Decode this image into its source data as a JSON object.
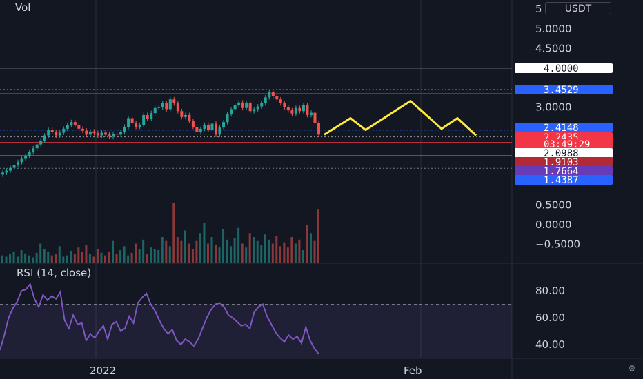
{
  "header": {
    "volume_label": "Vol",
    "currency_label": "USDT"
  },
  "price_axis": {
    "ticks": [
      "5.0000",
      "4.5000",
      "3.0000",
      "0.5000",
      "0.0000",
      "−0.5000"
    ],
    "partial_top_tick": "5"
  },
  "price_badges": [
    {
      "label": "4.0000",
      "bg": "#ffffff",
      "fg": "#131722"
    },
    {
      "label": "3.4529",
      "bg": "#2962ff",
      "fg": "#ffffff"
    },
    {
      "label": "2.4148",
      "bg": "#2962ff",
      "fg": "#ffffff"
    },
    {
      "label": "2.2435",
      "bg": "#f23645",
      "fg": "#ffffff"
    },
    {
      "label": "03:49:29",
      "bg": "#f23645",
      "fg": "#ffffff"
    },
    {
      "label": "2.0988",
      "bg": "#ffffff",
      "fg": "#131722"
    },
    {
      "label": "1.9103",
      "bg": "#b22833",
      "fg": "#ffffff"
    },
    {
      "label": "1.7664",
      "bg": "#673ab7",
      "fg": "#ffffff"
    },
    {
      "label": "1.4387",
      "bg": "#2962ff",
      "fg": "#ffffff"
    }
  ],
  "rsi": {
    "label": "RSI (14, close)",
    "ticks": [
      "80.00",
      "60.00",
      "40.00"
    ],
    "upper_band": 70,
    "mid_band": 50,
    "lower_band": 30,
    "line_color": "#7e57c2",
    "values": [
      36,
      47,
      60,
      67,
      72,
      80,
      81,
      85,
      74,
      68,
      77,
      73,
      76,
      74,
      79,
      58,
      52,
      62,
      55,
      56,
      43,
      48,
      45,
      50,
      54,
      44,
      55,
      57,
      50,
      52,
      61,
      56,
      71,
      75,
      78,
      70,
      65,
      58,
      52,
      48,
      51,
      43,
      40,
      44,
      42,
      39,
      44,
      52,
      60,
      66,
      70,
      71,
      68,
      62,
      60,
      57,
      54,
      55,
      52,
      64,
      68,
      70,
      61,
      55,
      49,
      45,
      42,
      47,
      44,
      46,
      41,
      53,
      43,
      37,
      33
    ]
  },
  "time_axis": {
    "labels": [
      "2022",
      "Feb"
    ]
  },
  "colors": {
    "background": "#131722",
    "up": "#26a69a",
    "down": "#ef5350",
    "projection": "#ffeb3b",
    "grid": "#2a2e39"
  },
  "chart_data": {
    "type": "candlestick",
    "title": "",
    "ylabel": "",
    "xlabel": "",
    "ylim": [
      -0.6,
      5.2
    ],
    "price_series_close": [
      1.33,
      1.38,
      1.45,
      1.52,
      1.6,
      1.68,
      1.76,
      1.85,
      1.95,
      2.05,
      2.15,
      2.28,
      2.42,
      2.36,
      2.28,
      2.35,
      2.45,
      2.55,
      2.62,
      2.55,
      2.45,
      2.4,
      2.3,
      2.38,
      2.34,
      2.28,
      2.35,
      2.3,
      2.25,
      2.32,
      2.3,
      2.36,
      2.5,
      2.72,
      2.6,
      2.5,
      2.55,
      2.8,
      2.7,
      2.85,
      2.98,
      3.0,
      3.1,
      2.95,
      3.2,
      3.1,
      2.9,
      2.75,
      2.8,
      2.65,
      2.5,
      2.36,
      2.45,
      2.55,
      2.42,
      2.58,
      2.3,
      2.48,
      2.62,
      2.82,
      2.95,
      3.05,
      3.12,
      2.98,
      3.1,
      2.9,
      2.95,
      3.02,
      3.1,
      3.25,
      3.38,
      3.28,
      3.2,
      3.1,
      3.0,
      2.92,
      2.84,
      2.98,
      2.9,
      3.05,
      2.8,
      2.86,
      2.6,
      2.3
    ],
    "projection_path": [
      2.3,
      2.72,
      2.42,
      3.16,
      2.45,
      2.72,
      2.28
    ],
    "horizontal_levels": [
      4.0,
      3.4529,
      3.35,
      2.4148,
      2.2435,
      2.0988,
      1.9103,
      1.7664,
      1.4387
    ],
    "volume_relative": [
      0.12,
      0.1,
      0.14,
      0.18,
      0.1,
      0.2,
      0.15,
      0.12,
      0.09,
      0.16,
      0.3,
      0.22,
      0.18,
      0.12,
      0.14,
      0.26,
      0.1,
      0.12,
      0.19,
      0.14,
      0.24,
      0.18,
      0.28,
      0.14,
      0.1,
      0.22,
      0.16,
      0.12,
      0.18,
      0.34,
      0.14,
      0.2,
      0.26,
      0.12,
      0.16,
      0.3,
      0.22,
      0.36,
      0.14,
      0.24,
      0.22,
      0.2,
      0.4,
      0.34,
      0.26,
      0.92,
      0.4,
      0.34,
      0.5,
      0.3,
      0.22,
      0.34,
      0.46,
      0.62,
      0.3,
      0.4,
      0.28,
      0.24,
      0.52,
      0.36,
      0.26,
      0.38,
      0.54,
      0.3,
      0.24,
      0.46,
      0.4,
      0.34,
      0.28,
      0.44,
      0.36,
      0.3,
      0.42,
      0.26,
      0.32,
      0.24,
      0.4,
      0.3,
      0.36,
      0.2,
      0.58,
      0.46,
      0.34,
      0.82
    ],
    "rsi_bands": [
      70,
      50,
      30
    ]
  }
}
